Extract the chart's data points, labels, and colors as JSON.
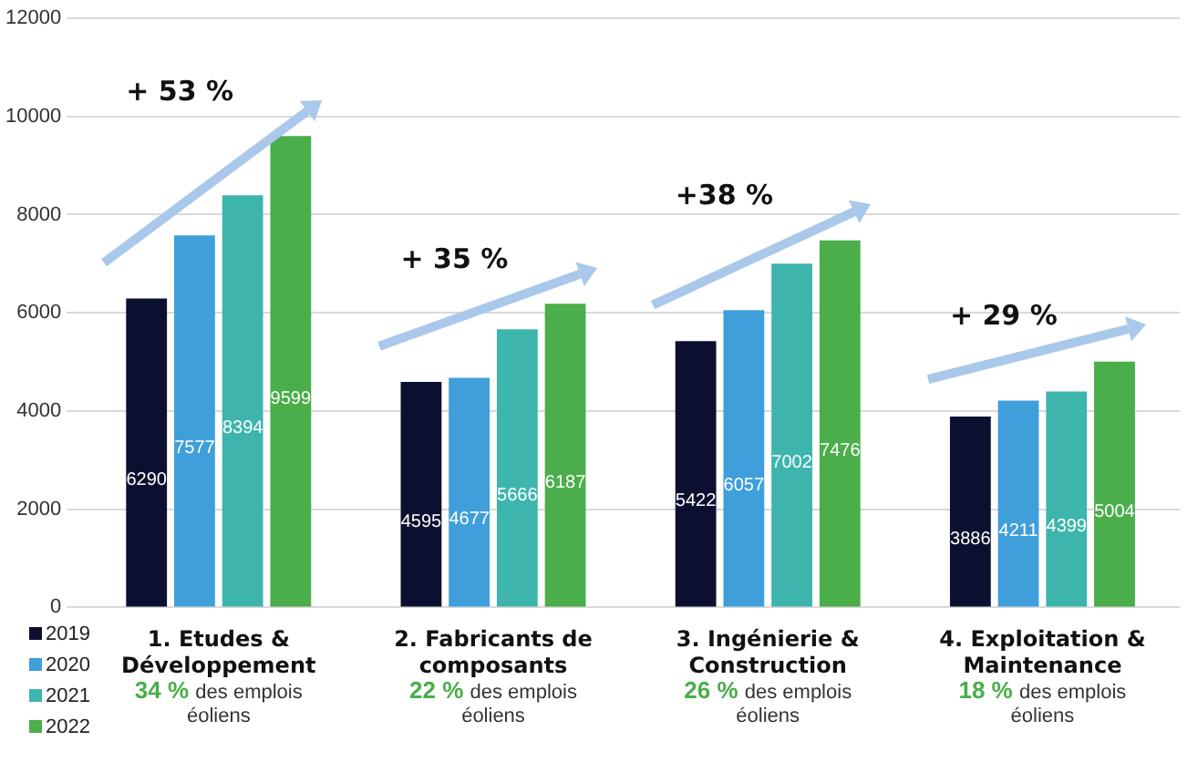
{
  "chart_data": {
    "type": "bar",
    "categories": [
      "1. Etudes & Développement",
      "2. Fabricants de composants",
      "3. Ingénierie & Construction",
      "4. Exploitation & Maintenance"
    ],
    "series": [
      {
        "name": "2019",
        "color": "#0b1030",
        "values": [
          6290,
          4595,
          5422,
          3886
        ]
      },
      {
        "name": "2020",
        "color": "#3f9fda",
        "values": [
          7577,
          4677,
          6057,
          4211
        ]
      },
      {
        "name": "2021",
        "color": "#3db5ad",
        "values": [
          8394,
          5666,
          7002,
          4399
        ]
      },
      {
        "name": "2022",
        "color": "#4aae4a",
        "values": [
          9599,
          6187,
          7476,
          5004
        ]
      }
    ],
    "ylim": [
      0,
      12000
    ],
    "yticks": [
      0,
      2000,
      4000,
      6000,
      8000,
      10000,
      12000
    ],
    "grid": "y",
    "legend": "bottom left",
    "data_labels": true,
    "annotations": [
      "+ 53 %",
      "+ 35 %",
      "+38 %",
      "+ 29 %",
      "34 % des emplois éoliens",
      "22 % des emplois éoliens",
      "26 % des emplois éoliens",
      "18 % des emplois éoliens"
    ]
  }
}
